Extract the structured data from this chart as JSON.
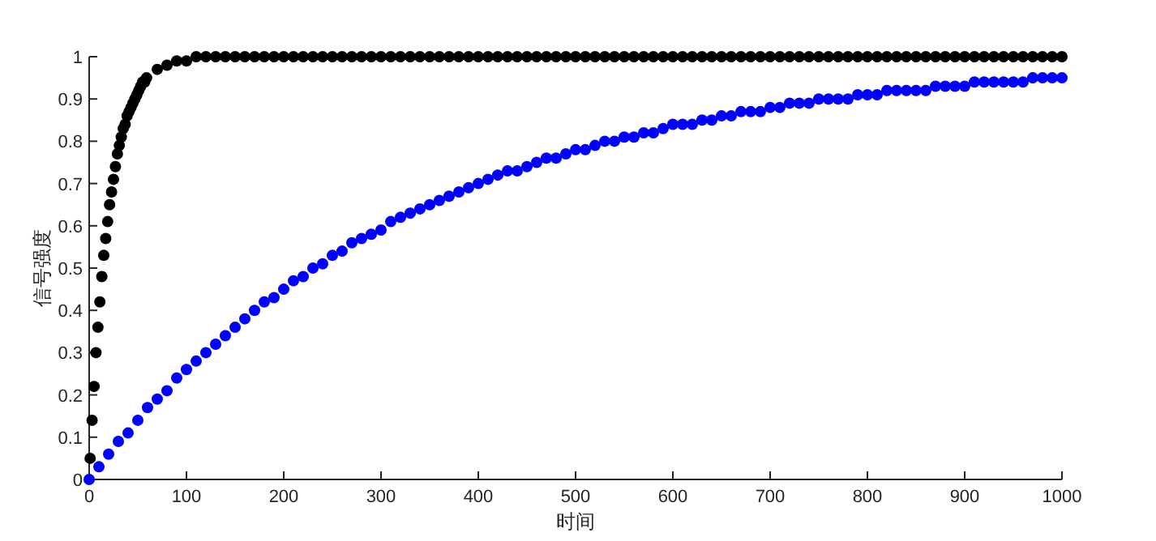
{
  "chart_data": {
    "type": "scatter",
    "xlabel": "时间",
    "ylabel": "信号强度",
    "marker": "circle",
    "xlim": [
      0,
      1000
    ],
    "ylim": [
      0,
      1
    ],
    "xticks": [
      0,
      100,
      200,
      300,
      400,
      500,
      600,
      700,
      800,
      900,
      1000
    ],
    "yticks": [
      0,
      0.1,
      0.2,
      0.3,
      0.4,
      0.5,
      0.6,
      0.7,
      0.8,
      0.9,
      1
    ],
    "series": [
      {
        "color": "#000000",
        "x": [
          1,
          3,
          5,
          7,
          9,
          11,
          13,
          15,
          17,
          19,
          21,
          23,
          25,
          27,
          29,
          31,
          33,
          35,
          37,
          39,
          41,
          43,
          45,
          47,
          49,
          51,
          53,
          55,
          57,
          59,
          70,
          80,
          90,
          100,
          110,
          120,
          130,
          140,
          150,
          160,
          170,
          180,
          190,
          200,
          210,
          220,
          230,
          240,
          250,
          260,
          270,
          280,
          290,
          300,
          310,
          320,
          330,
          340,
          350,
          360,
          370,
          380,
          390,
          400,
          410,
          420,
          430,
          440,
          450,
          460,
          470,
          480,
          490,
          500,
          510,
          520,
          530,
          540,
          550,
          560,
          570,
          580,
          590,
          600,
          610,
          620,
          630,
          640,
          650,
          660,
          670,
          680,
          690,
          700,
          710,
          720,
          730,
          740,
          750,
          760,
          770,
          780,
          790,
          800,
          810,
          820,
          830,
          840,
          850,
          860,
          870,
          880,
          890,
          900,
          910,
          920,
          930,
          940,
          950,
          960,
          970,
          980,
          990,
          1000
        ],
        "values": [
          0.05,
          0.14,
          0.22,
          0.3,
          0.36,
          0.42,
          0.48,
          0.53,
          0.57,
          0.61,
          0.65,
          0.68,
          0.71,
          0.74,
          0.77,
          0.79,
          0.81,
          0.83,
          0.84,
          0.86,
          0.87,
          0.88,
          0.89,
          0.9,
          0.91,
          0.92,
          0.93,
          0.94,
          0.94,
          0.95,
          0.97,
          0.98,
          0.99,
          0.99,
          1,
          1,
          1,
          1,
          1,
          1,
          1,
          1,
          1,
          1,
          1,
          1,
          1,
          1,
          1,
          1,
          1,
          1,
          1,
          1,
          1,
          1,
          1,
          1,
          1,
          1,
          1,
          1,
          1,
          1,
          1,
          1,
          1,
          1,
          1,
          1,
          1,
          1,
          1,
          1,
          1,
          1,
          1,
          1,
          1,
          1,
          1,
          1,
          1,
          1,
          1,
          1,
          1,
          1,
          1,
          1,
          1,
          1,
          1,
          1,
          1,
          1,
          1,
          1,
          1,
          1,
          1,
          1,
          1,
          1,
          1,
          1,
          1,
          1,
          1,
          1,
          1,
          1,
          1,
          1,
          1,
          1,
          1,
          1,
          1,
          1,
          1,
          1,
          1,
          1
        ]
      },
      {
        "color": "#0000ff",
        "x": [
          0,
          10,
          20,
          30,
          40,
          50,
          60,
          70,
          80,
          90,
          100,
          110,
          120,
          130,
          140,
          150,
          160,
          170,
          180,
          190,
          200,
          210,
          220,
          230,
          240,
          250,
          260,
          270,
          280,
          290,
          300,
          310,
          320,
          330,
          340,
          350,
          360,
          370,
          380,
          390,
          400,
          410,
          420,
          430,
          440,
          450,
          460,
          470,
          480,
          490,
          500,
          510,
          520,
          530,
          540,
          550,
          560,
          570,
          580,
          590,
          600,
          610,
          620,
          630,
          640,
          650,
          660,
          670,
          680,
          690,
          700,
          710,
          720,
          730,
          740,
          750,
          760,
          770,
          780,
          790,
          800,
          810,
          820,
          830,
          840,
          850,
          860,
          870,
          880,
          890,
          900,
          910,
          920,
          930,
          940,
          950,
          960,
          970,
          980,
          990,
          1000
        ],
        "values": [
          0,
          0.03,
          0.06,
          0.09,
          0.11,
          0.14,
          0.17,
          0.19,
          0.21,
          0.24,
          0.26,
          0.28,
          0.3,
          0.32,
          0.34,
          0.36,
          0.38,
          0.4,
          0.42,
          0.43,
          0.45,
          0.47,
          0.48,
          0.5,
          0.51,
          0.53,
          0.54,
          0.56,
          0.57,
          0.58,
          0.59,
          0.61,
          0.62,
          0.63,
          0.64,
          0.65,
          0.66,
          0.67,
          0.68,
          0.69,
          0.7,
          0.71,
          0.72,
          0.73,
          0.73,
          0.74,
          0.75,
          0.76,
          0.76,
          0.77,
          0.78,
          0.78,
          0.79,
          0.8,
          0.8,
          0.81,
          0.81,
          0.82,
          0.82,
          0.83,
          0.84,
          0.84,
          0.84,
          0.85,
          0.85,
          0.86,
          0.86,
          0.87,
          0.87,
          0.87,
          0.88,
          0.88,
          0.89,
          0.89,
          0.89,
          0.9,
          0.9,
          0.9,
          0.9,
          0.91,
          0.91,
          0.91,
          0.92,
          0.92,
          0.92,
          0.92,
          0.92,
          0.93,
          0.93,
          0.93,
          0.93,
          0.94,
          0.94,
          0.94,
          0.94,
          0.94,
          0.94,
          0.95,
          0.95,
          0.95,
          0.95
        ]
      }
    ]
  }
}
